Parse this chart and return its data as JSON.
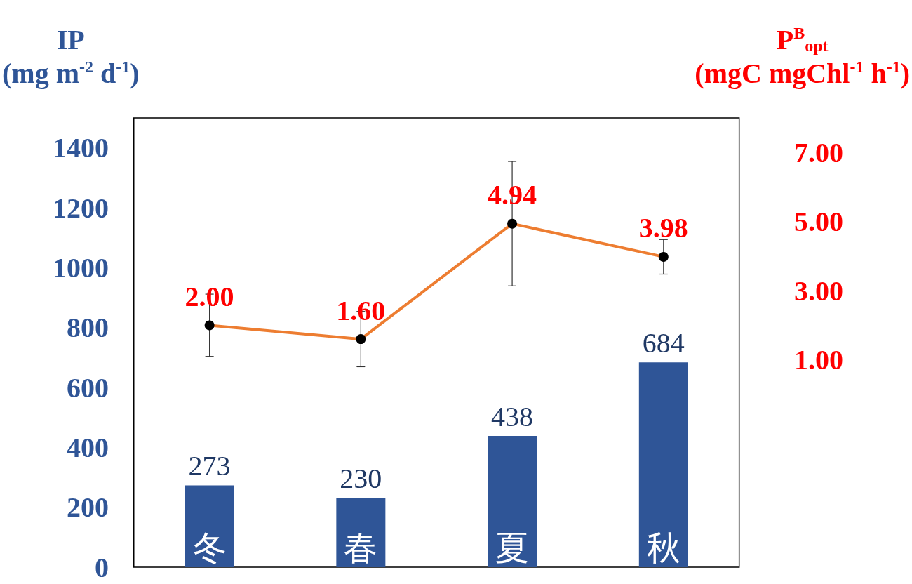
{
  "chart_data": {
    "type": "bar",
    "ylabel": "IP\n(mg m$^{-2}$ d$^{-1}$)",
    "y2label": "P$^{B}$$_{opt}$\n(mgC mgChl$^{-1}$ h$^{-1}$)",
    "categories": [
      "冬",
      "春",
      "夏",
      "秋"
    ],
    "series": [
      {
        "color": "#2f5597",
        "values": [
          273,
          230,
          438,
          684
        ],
        "value_labels": [
          "273",
          "230",
          "438",
          "684"
        ]
      },
      {
        "type": "line",
        "axis": "y2",
        "color": "#ed7d31",
        "values": [
          2.0,
          1.6,
          4.94,
          3.98
        ],
        "errors": [
          0.9,
          0.8,
          1.8,
          0.5
        ],
        "value_labels": [
          "2.00",
          "1.60",
          "4.94",
          "3.98"
        ]
      }
    ],
    "ylim": [
      0,
      1500
    ],
    "yticks": [
      0,
      200,
      400,
      600,
      800,
      1000,
      1200,
      1400
    ],
    "y2lim": [
      -5,
      8
    ],
    "y2ticks": [
      {
        "value": 1,
        "label": "1.00"
      },
      {
        "value": 3,
        "label": "3.00"
      },
      {
        "value": 5,
        "label": "5.00"
      },
      {
        "value": 7,
        "label": "7.00"
      }
    ],
    "marker": "circle",
    "line_style": "solid",
    "grid": false
  }
}
